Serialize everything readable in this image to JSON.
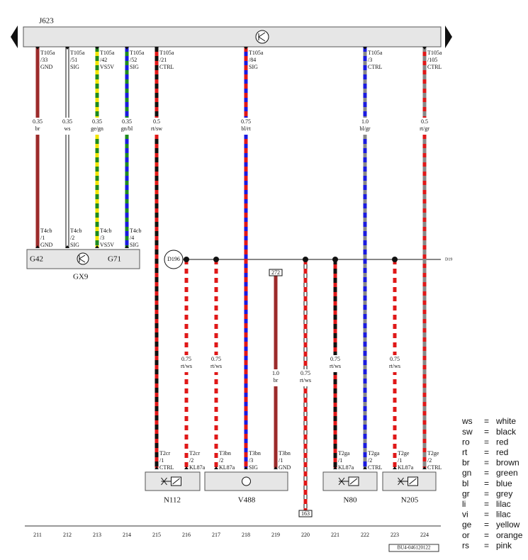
{
  "control_unit": "J623",
  "top_pins": [
    {
      "connector": "T105a",
      "pin": "/33",
      "signal": "GND"
    },
    {
      "connector": "T105a",
      "pin": "/51",
      "signal": "SIG"
    },
    {
      "connector": "T105a",
      "pin": "/42",
      "signal": "VS5V"
    },
    {
      "connector": "T105a",
      "pin": "/52",
      "signal": "SIG"
    },
    {
      "connector": "T105a",
      "pin": "/21",
      "signal": "CTRL"
    },
    {
      "connector": "T105a",
      "pin": "/84",
      "signal": "SIG"
    },
    {
      "connector": "T105a",
      "pin": "/3",
      "signal": "CTRL"
    },
    {
      "connector": "T105a",
      "pin": "/105",
      "signal": "CTRL"
    }
  ],
  "top_wires": [
    {
      "size": "0.35",
      "color": "br"
    },
    {
      "size": "0.35",
      "color": "ws"
    },
    {
      "size": "0.35",
      "color": "ge/gn"
    },
    {
      "size": "0.35",
      "color": "gn/bl"
    },
    {
      "size": "0.5",
      "color": "rt/sw"
    },
    {
      "size": "0.75",
      "color": "bl/rt"
    },
    {
      "size": "1.0",
      "color": "bl/gr"
    },
    {
      "size": "0.5",
      "color": "rt/gr"
    }
  ],
  "sensor_pins": [
    {
      "connector": "T4cb",
      "pin": "/1",
      "signal": "GND"
    },
    {
      "connector": "T4cb",
      "pin": "/2",
      "signal": "SIG"
    },
    {
      "connector": "T4cb",
      "pin": "/3",
      "signal": "VS5V"
    },
    {
      "connector": "T4cb",
      "pin": "/4",
      "signal": "SIG"
    }
  ],
  "sensor": {
    "left": "G42",
    "right": "G71",
    "name": "GX9"
  },
  "splice": "D196",
  "bus_end": "D19",
  "refs": [
    "272",
    "163"
  ],
  "lower_wires": [
    {
      "size": "0.75",
      "color": "rt/ws"
    },
    {
      "size": "0.75",
      "color": "rt/ws"
    },
    {
      "size": "1.0",
      "color": "br"
    },
    {
      "size": "0.75",
      "color": "rt/ws"
    },
    {
      "size": "0.75",
      "color": "rt/ws"
    },
    {
      "size": "0.75",
      "color": "rt/ws"
    }
  ],
  "bottom_pins": [
    {
      "connector": "T2cr",
      "pin": "/1",
      "signal": "CTRL"
    },
    {
      "connector": "T2cr",
      "pin": "/2",
      "signal": "KL87a"
    },
    {
      "connector": "T3bn",
      "pin": "/2",
      "signal": "KL87a"
    },
    {
      "connector": "T3bn",
      "pin": "/3",
      "signal": "SIG"
    },
    {
      "connector": "T3bn",
      "pin": "/1",
      "signal": "GND"
    },
    {
      "connector": "T2ga",
      "pin": "/1",
      "signal": "KL87a"
    },
    {
      "connector": "T2ga",
      "pin": "/2",
      "signal": "CTRL"
    },
    {
      "connector": "T2ge",
      "pin": "/1",
      "signal": "KL87a"
    },
    {
      "connector": "T2ge",
      "pin": "/2",
      "signal": "CTRL"
    }
  ],
  "components": [
    "N112",
    "V488",
    "N80",
    "N205"
  ],
  "columns": [
    "211",
    "212",
    "213",
    "214",
    "215",
    "216",
    "217",
    "218",
    "219",
    "220",
    "221",
    "222",
    "223",
    "224"
  ],
  "doc_id": "BU4-046120122",
  "legend_separator": "=",
  "legend": [
    {
      "abbr": "ws",
      "meaning": "white"
    },
    {
      "abbr": "sw",
      "meaning": "black"
    },
    {
      "abbr": "ro",
      "meaning": "red"
    },
    {
      "abbr": "rt",
      "meaning": "red"
    },
    {
      "abbr": "br",
      "meaning": "brown"
    },
    {
      "abbr": "gn",
      "meaning": "green"
    },
    {
      "abbr": "bl",
      "meaning": "blue"
    },
    {
      "abbr": "gr",
      "meaning": "grey"
    },
    {
      "abbr": "li",
      "meaning": "lilac"
    },
    {
      "abbr": "vi",
      "meaning": "lilac"
    },
    {
      "abbr": "ge",
      "meaning": "yellow"
    },
    {
      "abbr": "or",
      "meaning": "orange"
    },
    {
      "abbr": "rs",
      "meaning": "pink"
    }
  ]
}
